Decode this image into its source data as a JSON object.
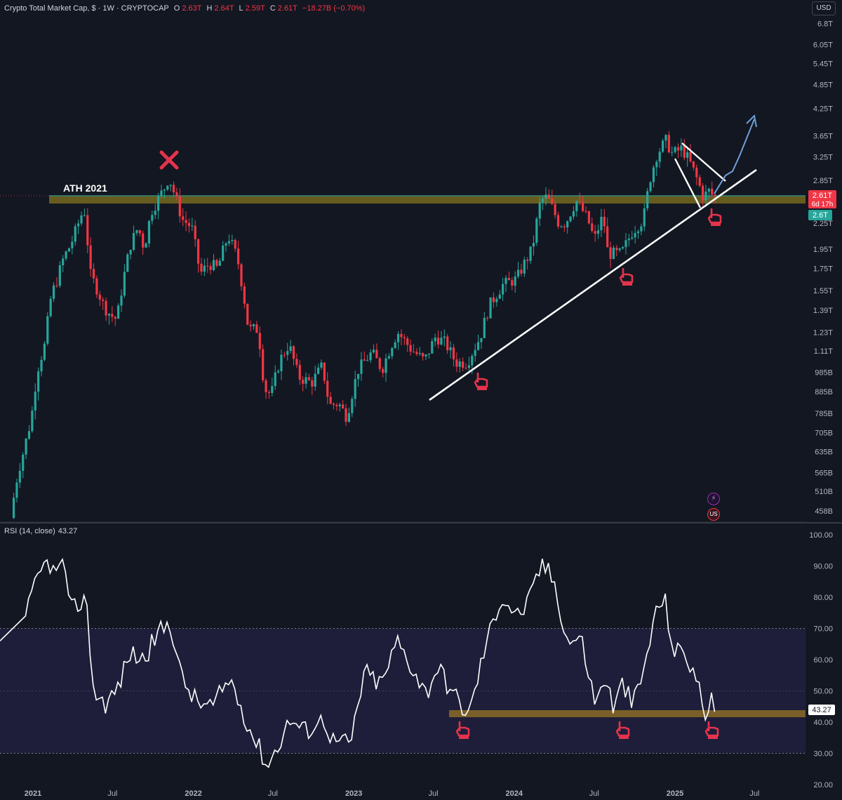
{
  "header": {
    "symbol": "Crypto Total Market Cap, $ · 1W · CRYPTOCAP",
    "open_label": "O",
    "open_value": "2.63T",
    "high_label": "H",
    "high_value": "2.64T",
    "low_label": "L",
    "low_value": "2.59T",
    "close_label": "C",
    "close_value": "2.61T",
    "change_value": "−18.27B (−0.70%)"
  },
  "currency_button": "USD",
  "rsi_header": {
    "label": "RSI (14, close)",
    "value": "43.27"
  },
  "annotations": {
    "ath_label": "ATH 2021",
    "price_badge_value": "2.61T",
    "price_badge_countdown": "6d 17h",
    "price_badge_level": "2.6T",
    "rsi_badge": "43.27"
  },
  "icons": {
    "bolt": "⚡",
    "flag": "US"
  },
  "colors": {
    "background": "#131722",
    "up": "#26a69a",
    "down": "#f23645",
    "support_zone": "#6b6020",
    "rsi_line": "#ffffff",
    "rsi_band": "#1e1e3a",
    "forecast_arrow": "#6f9fd8"
  },
  "chart_data": [
    {
      "type": "candlestick",
      "title": "Crypto Total Market Cap",
      "scale": "log",
      "ylim": [
        430000000000,
        7200000000000
      ],
      "y_ticks": [
        "458B",
        "510B",
        "565B",
        "635B",
        "705B",
        "785B",
        "885B",
        "985B",
        "1.11T",
        "1.23T",
        "1.39T",
        "1.55T",
        "1.75T",
        "1.95T",
        "2.25T",
        "2.5T",
        "2.85T",
        "3.25T",
        "3.65T",
        "4.25T",
        "4.85T",
        "5.45T",
        "6.05T",
        "6.8T"
      ],
      "y_tick_values": [
        458,
        510,
        565,
        635,
        705,
        785,
        885,
        985,
        1110,
        1230,
        1390,
        1550,
        1750,
        1950,
        2250,
        2500,
        2850,
        3250,
        3650,
        4250,
        4850,
        5450,
        6050,
        6800
      ],
      "x_ticks": [
        "2021",
        "Jul",
        "2022",
        "Jul",
        "2023",
        "Jul",
        "2024",
        "Jul",
        "2025",
        "Jul"
      ],
      "x_tick_values": [
        "2021-01-01",
        "2021-07-01",
        "2022-01-01",
        "2022-07-01",
        "2023-01-01",
        "2023-07-01",
        "2024-01-01",
        "2024-07-01",
        "2025-01-01",
        "2025-07-01"
      ],
      "series": [
        {
          "values_billion": [
            {
              "date": "2020-11-15",
              "value": 440
            },
            {
              "date": "2020-12-01",
              "value": 560
            },
            {
              "date": "2020-12-15",
              "value": 640
            },
            {
              "date": "2021-01-01",
              "value": 760
            },
            {
              "date": "2021-01-15",
              "value": 1000
            },
            {
              "date": "2021-02-01",
              "value": 1150
            },
            {
              "date": "2021-02-15",
              "value": 1500
            },
            {
              "date": "2021-03-01",
              "value": 1650
            },
            {
              "date": "2021-03-15",
              "value": 1850
            },
            {
              "date": "2021-04-01",
              "value": 2000
            },
            {
              "date": "2021-04-15",
              "value": 2200
            },
            {
              "date": "2021-05-01",
              "value": 2450
            },
            {
              "date": "2021-05-15",
              "value": 1700
            },
            {
              "date": "2021-06-01",
              "value": 1550
            },
            {
              "date": "2021-06-15",
              "value": 1420
            },
            {
              "date": "2021-07-01",
              "value": 1350
            },
            {
              "date": "2021-07-15",
              "value": 1320
            },
            {
              "date": "2021-08-01",
              "value": 1700
            },
            {
              "date": "2021-08-15",
              "value": 2000
            },
            {
              "date": "2021-09-01",
              "value": 2200
            },
            {
              "date": "2021-09-15",
              "value": 1950
            },
            {
              "date": "2021-10-01",
              "value": 2400
            },
            {
              "date": "2021-10-15",
              "value": 2550
            },
            {
              "date": "2021-11-01",
              "value": 2750
            },
            {
              "date": "2021-11-10",
              "value": 2900
            },
            {
              "date": "2021-11-25",
              "value": 2600
            },
            {
              "date": "2021-12-10",
              "value": 2300
            },
            {
              "date": "2022-01-01",
              "value": 2200
            },
            {
              "date": "2022-01-20",
              "value": 1700
            },
            {
              "date": "2022-02-10",
              "value": 1800
            },
            {
              "date": "2022-03-01",
              "value": 1750
            },
            {
              "date": "2022-03-25",
              "value": 2100
            },
            {
              "date": "2022-04-15",
              "value": 1850
            },
            {
              "date": "2022-05-10",
              "value": 1250
            },
            {
              "date": "2022-06-01",
              "value": 1250
            },
            {
              "date": "2022-06-15",
              "value": 900
            },
            {
              "date": "2022-07-01",
              "value": 870
            },
            {
              "date": "2022-07-20",
              "value": 1050
            },
            {
              "date": "2022-08-10",
              "value": 1150
            },
            {
              "date": "2022-09-01",
              "value": 960
            },
            {
              "date": "2022-10-01",
              "value": 930
            },
            {
              "date": "2022-10-25",
              "value": 1020
            },
            {
              "date": "2022-11-10",
              "value": 820
            },
            {
              "date": "2022-12-01",
              "value": 830
            },
            {
              "date": "2022-12-20",
              "value": 770
            },
            {
              "date": "2023-01-15",
              "value": 1000
            },
            {
              "date": "2023-02-15",
              "value": 1100
            },
            {
              "date": "2023-03-10",
              "value": 1000
            },
            {
              "date": "2023-04-01",
              "value": 1150
            },
            {
              "date": "2023-04-15",
              "value": 1230
            },
            {
              "date": "2023-05-15",
              "value": 1120
            },
            {
              "date": "2023-06-15",
              "value": 1050
            },
            {
              "date": "2023-07-10",
              "value": 1200
            },
            {
              "date": "2023-08-01",
              "value": 1160
            },
            {
              "date": "2023-08-25",
              "value": 1040
            },
            {
              "date": "2023-09-20",
              "value": 1040
            },
            {
              "date": "2023-10-20",
              "value": 1200
            },
            {
              "date": "2023-11-10",
              "value": 1430
            },
            {
              "date": "2023-12-10",
              "value": 1600
            },
            {
              "date": "2024-01-10",
              "value": 1650
            },
            {
              "date": "2024-02-15",
              "value": 1950
            },
            {
              "date": "2024-03-05",
              "value": 2550
            },
            {
              "date": "2024-03-20",
              "value": 2600
            },
            {
              "date": "2024-04-15",
              "value": 2250
            },
            {
              "date": "2024-05-01",
              "value": 2250
            },
            {
              "date": "2024-05-25",
              "value": 2550
            },
            {
              "date": "2024-06-20",
              "value": 2300
            },
            {
              "date": "2024-07-05",
              "value": 2050
            },
            {
              "date": "2024-07-25",
              "value": 2350
            },
            {
              "date": "2024-08-05",
              "value": 1900
            },
            {
              "date": "2024-09-05",
              "value": 1900
            },
            {
              "date": "2024-09-30",
              "value": 2150
            },
            {
              "date": "2024-10-25",
              "value": 2300
            },
            {
              "date": "2024-11-10",
              "value": 2900
            },
            {
              "date": "2024-11-25",
              "value": 3300
            },
            {
              "date": "2024-12-15",
              "value": 3550
            },
            {
              "date": "2024-12-30",
              "value": 3300
            },
            {
              "date": "2025-01-20",
              "value": 3400
            },
            {
              "date": "2025-02-05",
              "value": 3200
            },
            {
              "date": "2025-02-25",
              "value": 2850
            },
            {
              "date": "2025-03-10",
              "value": 2600
            },
            {
              "date": "2025-03-25",
              "value": 2700
            },
            {
              "date": "2025-04-01",
              "value": 2610
            }
          ]
        }
      ]
    },
    {
      "type": "line",
      "title": "RSI (14, close)",
      "ylim": [
        20,
        100
      ],
      "y_ticks": [
        "20.00",
        "30.00",
        "40.00",
        "50.00",
        "60.00",
        "70.00",
        "80.00",
        "90.00",
        "100.00"
      ],
      "y_tick_values": [
        20,
        30,
        40,
        50,
        60,
        70,
        80,
        90,
        100
      ],
      "overbought_level": 70,
      "oversold_level": 30,
      "series": [
        {
          "name": "RSI",
          "values": [
            {
              "date": "2020-12-15",
              "value": 74
            },
            {
              "date": "2021-01-15",
              "value": 87
            },
            {
              "date": "2021-02-05",
              "value": 92
            },
            {
              "date": "2021-02-25",
              "value": 86
            },
            {
              "date": "2021-03-10",
              "value": 94
            },
            {
              "date": "2021-03-25",
              "value": 75
            },
            {
              "date": "2021-04-15",
              "value": 78
            },
            {
              "date": "2021-05-01",
              "value": 80
            },
            {
              "date": "2021-05-20",
              "value": 49
            },
            {
              "date": "2021-06-15",
              "value": 46
            },
            {
              "date": "2021-07-10",
              "value": 50
            },
            {
              "date": "2021-08-10",
              "value": 62
            },
            {
              "date": "2021-09-10",
              "value": 60
            },
            {
              "date": "2021-10-10",
              "value": 68
            },
            {
              "date": "2021-11-10",
              "value": 72
            },
            {
              "date": "2021-12-05",
              "value": 54
            },
            {
              "date": "2022-01-10",
              "value": 46
            },
            {
              "date": "2022-02-15",
              "value": 45
            },
            {
              "date": "2022-03-25",
              "value": 54
            },
            {
              "date": "2022-04-20",
              "value": 45
            },
            {
              "date": "2022-05-15",
              "value": 36
            },
            {
              "date": "2022-06-20",
              "value": 26
            },
            {
              "date": "2022-07-20",
              "value": 35
            },
            {
              "date": "2022-08-10",
              "value": 41
            },
            {
              "date": "2022-09-10",
              "value": 37
            },
            {
              "date": "2022-10-25",
              "value": 41
            },
            {
              "date": "2022-11-15",
              "value": 34
            },
            {
              "date": "2022-12-25",
              "value": 33
            },
            {
              "date": "2023-01-25",
              "value": 56
            },
            {
              "date": "2023-03-05",
              "value": 52
            },
            {
              "date": "2023-04-10",
              "value": 66
            },
            {
              "date": "2023-05-20",
              "value": 56
            },
            {
              "date": "2023-06-15",
              "value": 49
            },
            {
              "date": "2023-07-10",
              "value": 58
            },
            {
              "date": "2023-08-15",
              "value": 49
            },
            {
              "date": "2023-09-05",
              "value": 45
            },
            {
              "date": "2023-09-20",
              "value": 42
            },
            {
              "date": "2023-10-25",
              "value": 63
            },
            {
              "date": "2023-11-20",
              "value": 75
            },
            {
              "date": "2023-12-05",
              "value": 80
            },
            {
              "date": "2024-01-10",
              "value": 74
            },
            {
              "date": "2024-02-05",
              "value": 79
            },
            {
              "date": "2024-03-05",
              "value": 91
            },
            {
              "date": "2024-04-01",
              "value": 85
            },
            {
              "date": "2024-05-01",
              "value": 66
            },
            {
              "date": "2024-06-01",
              "value": 67
            },
            {
              "date": "2024-07-05",
              "value": 45
            },
            {
              "date": "2024-07-25",
              "value": 55
            },
            {
              "date": "2024-08-15",
              "value": 44
            },
            {
              "date": "2024-09-05",
              "value": 53
            },
            {
              "date": "2024-09-25",
              "value": 45
            },
            {
              "date": "2024-10-20",
              "value": 55
            },
            {
              "date": "2024-11-10",
              "value": 70
            },
            {
              "date": "2024-11-25",
              "value": 78
            },
            {
              "date": "2024-12-10",
              "value": 78
            },
            {
              "date": "2024-12-30",
              "value": 62
            },
            {
              "date": "2025-01-20",
              "value": 63
            },
            {
              "date": "2025-02-10",
              "value": 57
            },
            {
              "date": "2025-03-01",
              "value": 48
            },
            {
              "date": "2025-03-15",
              "value": 42
            },
            {
              "date": "2025-03-25",
              "value": 46
            },
            {
              "date": "2025-04-01",
              "value": 43.27
            }
          ]
        }
      ]
    }
  ]
}
